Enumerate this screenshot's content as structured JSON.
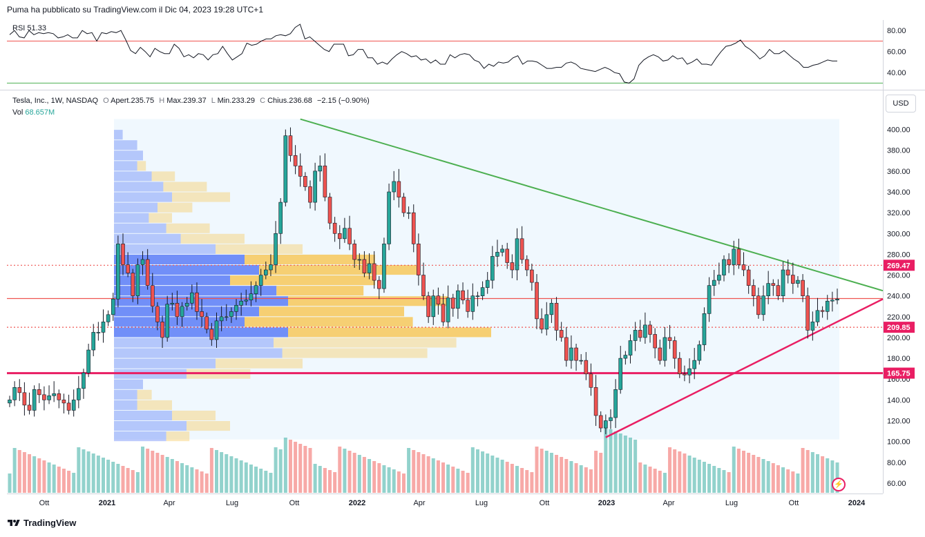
{
  "header": {
    "published": "Puma ha pubblicato su TradingView.com il Dic 04, 2023 19:28 UTC+1"
  },
  "legend": {
    "symbol": "Tesla, Inc., 1W, NASDAQ",
    "o_label": "O",
    "o_val": "Apert.235.75",
    "h_label": "H",
    "h_val": "Max.239.37",
    "l_label": "L",
    "l_val": "Min.233.29",
    "c_label": "C",
    "c_val": "Chius.236.68",
    "change": "−2.15 (−0.90%)",
    "vol_label": "Vol",
    "vol_val": "68.657M"
  },
  "rsi": {
    "label": "RSI",
    "value": "51.33"
  },
  "currency_button": "USD",
  "footer": {
    "brand": "TradingView"
  },
  "colors": {
    "up": "#26a69a",
    "down": "#ef5350",
    "trend_down": "#4caf50",
    "trend_up": "#e91e63",
    "level": "#e91e63",
    "rsi_line": "#131722",
    "vp_up": "#5b7cf7",
    "vp_down": "#f7c85b"
  },
  "chart_data": [
    {
      "type": "line",
      "name": "RSI",
      "ylim": [
        25,
        90
      ],
      "y_ticks": [
        "80.00",
        "60.00",
        "40.00"
      ],
      "upper_band": 70,
      "lower_band": 30,
      "values": [
        76,
        80,
        74,
        73,
        80,
        76,
        78,
        77,
        78,
        77,
        73,
        74,
        76,
        73,
        73,
        80,
        77,
        78,
        70,
        78,
        77,
        79,
        78,
        80,
        71,
        61,
        58,
        64,
        60,
        55,
        63,
        60,
        58,
        58,
        67,
        63,
        55,
        57,
        54,
        58,
        57,
        52,
        57,
        58,
        65,
        58,
        52,
        55,
        58,
        68,
        66,
        67,
        70,
        72,
        72,
        75,
        76,
        75,
        77,
        83,
        86,
        72,
        74,
        70,
        66,
        62,
        60,
        67,
        67,
        67,
        56,
        57,
        62,
        62,
        54,
        54,
        48,
        50,
        48,
        53,
        57,
        60,
        58,
        55,
        56,
        52,
        53,
        49,
        52,
        48,
        48,
        57,
        54,
        57,
        58,
        57,
        52,
        50,
        44,
        48,
        46,
        50,
        49,
        50,
        54,
        56,
        48,
        51,
        51,
        50,
        47,
        44,
        44,
        45,
        45,
        49,
        50,
        48,
        44,
        43,
        42,
        41,
        43,
        45,
        43,
        40,
        39,
        31,
        30,
        34,
        47,
        52,
        55,
        57,
        55,
        51,
        52,
        56,
        53,
        54,
        48,
        50,
        53,
        48,
        48,
        47,
        54,
        60,
        65,
        66,
        68,
        71,
        65,
        62,
        58,
        53,
        56,
        62,
        58,
        58,
        61,
        57,
        53,
        50,
        45,
        45,
        47,
        48,
        50,
        52,
        51,
        51
      ],
      "x_ticks": [
        "Ott",
        "2021",
        "Apr",
        "Lug",
        "Ott",
        "2022",
        "Apr",
        "Lug",
        "Ott",
        "2023",
        "Apr",
        "Lug",
        "Ott",
        "2024"
      ]
    },
    {
      "type": "candlestick",
      "name": "Tesla, Inc., 1W, NASDAQ",
      "ylim": [
        50,
        415
      ],
      "y_ticks": [
        "400.00",
        "380.00",
        "360.00",
        "340.00",
        "320.00",
        "300.00",
        "280.00",
        "260.00",
        "240.00",
        "220.00",
        "200.00",
        "180.00",
        "160.00",
        "140.00",
        "120.00",
        "100.00",
        "80.00",
        "60.00"
      ],
      "x_ticks": [
        "Ott",
        "2021",
        "Apr",
        "Lug",
        "Ott",
        "2022",
        "Apr",
        "Lug",
        "Ott",
        "2023",
        "Apr",
        "Lug",
        "Ott",
        "2024"
      ],
      "price_levels": [
        269.47,
        237.5,
        209.85,
        165.75
      ],
      "level_labels": [
        "269.47",
        "209.85",
        "165.75"
      ],
      "close": [
        140,
        152,
        147,
        135,
        130,
        150,
        145,
        140,
        144,
        146,
        140,
        137,
        130,
        140,
        151,
        166,
        188,
        205,
        205,
        215,
        222,
        237,
        290,
        270,
        262,
        240,
        270,
        275,
        250,
        230,
        215,
        200,
        232,
        233,
        220,
        230,
        233,
        243,
        225,
        220,
        208,
        198,
        216,
        220,
        220,
        225,
        231,
        235,
        236,
        242,
        250,
        260,
        265,
        270,
        300,
        330,
        394,
        375,
        365,
        355,
        345,
        330,
        360,
        365,
        335,
        310,
        300,
        295,
        305,
        290,
        275,
        275,
        262,
        271,
        255,
        247,
        290,
        340,
        350,
        335,
        320,
        320,
        290,
        260,
        240,
        220,
        240,
        232,
        215,
        238,
        228,
        245,
        236,
        225,
        240,
        240,
        248,
        255,
        278,
        282,
        285,
        272,
        265,
        295,
        275,
        265,
        253,
        218,
        208,
        222,
        233,
        207,
        200,
        178,
        190,
        178,
        178,
        165,
        152,
        125,
        113,
        120,
        123,
        150,
        180,
        183,
        197,
        207,
        200,
        212,
        203,
        190,
        178,
        200,
        197,
        180,
        165,
        164,
        170,
        178,
        193,
        223,
        250,
        255,
        260,
        275,
        270,
        285,
        270,
        265,
        250,
        240,
        222,
        240,
        252,
        250,
        240,
        265,
        260,
        252,
        255,
        240,
        207,
        215,
        226,
        225,
        235,
        236,
        237
      ],
      "tv_watermark": "TradingView"
    },
    {
      "type": "bar",
      "name": "Vol",
      "value_label": "68.657M"
    },
    {
      "type": "horizontal-volume-profile",
      "price_rows": [
        395,
        385,
        375,
        365,
        355,
        345,
        335,
        325,
        315,
        305,
        295,
        285,
        275,
        265,
        255,
        245,
        235,
        225,
        215,
        205,
        195,
        185,
        175,
        165,
        155,
        145,
        135,
        125,
        115,
        105
      ],
      "up_volume": [
        3,
        8,
        10,
        8,
        13,
        17,
        20,
        15,
        12,
        18,
        23,
        35,
        45,
        50,
        40,
        56,
        60,
        50,
        45,
        60,
        55,
        58,
        35,
        25,
        10,
        8,
        8,
        20,
        25,
        18
      ],
      "down_volume": [
        0,
        0,
        0,
        3,
        8,
        15,
        20,
        12,
        8,
        15,
        22,
        30,
        45,
        55,
        50,
        30,
        55,
        50,
        58,
        70,
        63,
        50,
        30,
        22,
        0,
        5,
        12,
        15,
        15,
        8
      ]
    }
  ]
}
